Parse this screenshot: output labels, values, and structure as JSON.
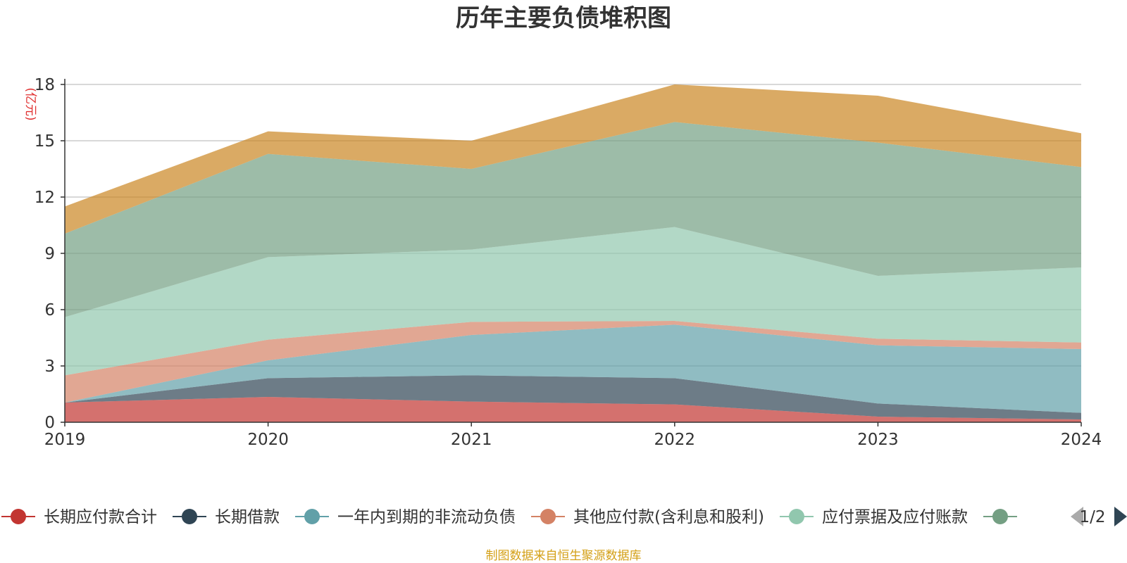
{
  "chart_data": {
    "type": "area",
    "stacked": true,
    "title": "历年主要负债堆积图",
    "y_unit": "(亿元)",
    "x": [
      "2019",
      "2020",
      "2021",
      "2022",
      "2023",
      "2024"
    ],
    "ylim": [
      0,
      18
    ],
    "y_ticks": [
      "0",
      "3",
      "6",
      "9",
      "12",
      "15",
      "18"
    ],
    "grid": true,
    "series": [
      {
        "name": "长期应付款合计",
        "color": "#c23531",
        "values": [
          1.05,
          1.35,
          1.1,
          0.95,
          0.3,
          0.15
        ]
      },
      {
        "name": "长期借款",
        "color": "#2f4554",
        "values": [
          0.0,
          1.0,
          1.4,
          1.4,
          0.7,
          0.35
        ]
      },
      {
        "name": "一年内到期的非流动负债",
        "color": "#61a0a8",
        "values": [
          0.0,
          0.95,
          2.15,
          2.85,
          3.1,
          3.4
        ]
      },
      {
        "name": "其他应付款(含利息和股利)",
        "color": "#d48265",
        "values": [
          1.45,
          1.1,
          0.7,
          0.2,
          0.35,
          0.35
        ]
      },
      {
        "name": "应付票据及应付账款",
        "color": "#91c7ae",
        "values": [
          3.1,
          4.4,
          3.85,
          5.0,
          3.35,
          4.0
        ]
      },
      {
        "name": "",
        "color": "#749f83",
        "values": [
          4.45,
          5.5,
          4.3,
          5.6,
          7.1,
          5.35
        ]
      },
      {
        "name": "",
        "color": "#ca8622",
        "values": [
          1.45,
          1.2,
          1.5,
          2.0,
          2.5,
          1.8
        ]
      }
    ]
  },
  "legend": {
    "visible_count": 6,
    "page_indicator": "1/2"
  },
  "footer": {
    "source_text": "制图数据来自恒生聚源数据库",
    "source_color": "#d4a017"
  },
  "colors": {
    "title": "#333333",
    "axis": "#333333",
    "grid": "#cccccc",
    "unit_label": "#e03030",
    "pager_active": "#2f4554",
    "pager_inactive": "#aaaaaa"
  }
}
